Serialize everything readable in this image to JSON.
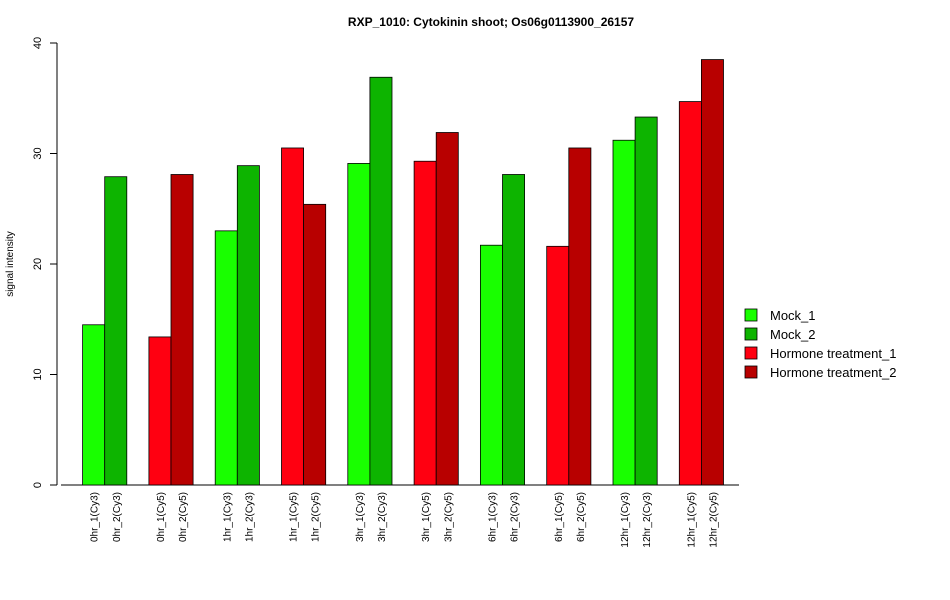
{
  "chart_data": {
    "type": "bar",
    "title": "RXP_1010: Cytokinin shoot; Os06g0113900_26157",
    "xlabel": "",
    "ylabel": "signal intensity",
    "ylim": [
      0,
      40
    ],
    "yticks": [
      "0",
      "10",
      "20",
      "30",
      "40"
    ],
    "bars": [
      {
        "label": "0hr_1(Cy3)",
        "value": 14.5,
        "series": 0
      },
      {
        "label": "0hr_2(Cy3)",
        "value": 27.9,
        "series": 1
      },
      {
        "label": "0hr_1(Cy5)",
        "value": 13.4,
        "series": 2
      },
      {
        "label": "0hr_2(Cy5)",
        "value": 28.1,
        "series": 3
      },
      {
        "label": "1hr_1(Cy3)",
        "value": 23.0,
        "series": 0
      },
      {
        "label": "1hr_2(Cy3)",
        "value": 28.9,
        "series": 1
      },
      {
        "label": "1hr_1(Cy5)",
        "value": 30.5,
        "series": 2
      },
      {
        "label": "1hr_2(Cy5)",
        "value": 25.4,
        "series": 3
      },
      {
        "label": "3hr_1(Cy3)",
        "value": 29.1,
        "series": 0
      },
      {
        "label": "3hr_2(Cy3)",
        "value": 36.9,
        "series": 1
      },
      {
        "label": "3hr_1(Cy5)",
        "value": 29.3,
        "series": 2
      },
      {
        "label": "3hr_2(Cy5)",
        "value": 31.9,
        "series": 3
      },
      {
        "label": "6hr_1(Cy3)",
        "value": 21.7,
        "series": 0
      },
      {
        "label": "6hr_2(Cy3)",
        "value": 28.1,
        "series": 1
      },
      {
        "label": "6hr_1(Cy5)",
        "value": 21.6,
        "series": 2
      },
      {
        "label": "6hr_2(Cy5)",
        "value": 30.5,
        "series": 3
      },
      {
        "label": "12hr_1(Cy3)",
        "value": 31.2,
        "series": 0
      },
      {
        "label": "12hr_2(Cy3)",
        "value": 33.3,
        "series": 1
      },
      {
        "label": "12hr_1(Cy5)",
        "value": 34.7,
        "series": 2
      },
      {
        "label": "12hr_2(Cy5)",
        "value": 38.5,
        "series": 3
      }
    ],
    "series": [
      {
        "name": "Mock_1",
        "color": "#19ff00"
      },
      {
        "name": "Mock_2",
        "color": "#0db400"
      },
      {
        "name": "Hormone treatment_1",
        "color": "#ff0011"
      },
      {
        "name": "Hormone treatment_2",
        "color": "#b80000"
      }
    ],
    "legend_position": "right",
    "grid": false
  }
}
